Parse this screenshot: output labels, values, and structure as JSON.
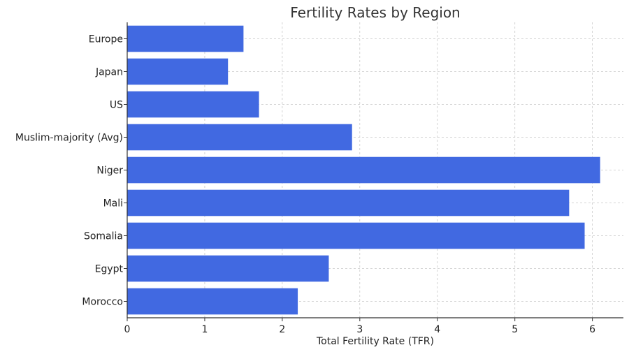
{
  "chart_data": {
    "type": "bar",
    "orientation": "horizontal",
    "title": "Fertility Rates by Region",
    "xlabel": "Total Fertility Rate (TFR)",
    "ylabel": "",
    "categories": [
      "Europe",
      "Japan",
      "US",
      "Muslim-majority (Avg)",
      "Niger",
      "Mali",
      "Somalia",
      "Egypt",
      "Morocco"
    ],
    "values": [
      1.5,
      1.3,
      1.7,
      2.9,
      6.1,
      5.7,
      5.9,
      2.6,
      2.2
    ],
    "xlim": [
      0,
      6.4
    ],
    "xticks": [
      0,
      1,
      2,
      3,
      4,
      5,
      6
    ],
    "grid": true,
    "bar_color": "#4169e1",
    "grid_color": "#c8c8c8",
    "axis_color": "#333333"
  }
}
